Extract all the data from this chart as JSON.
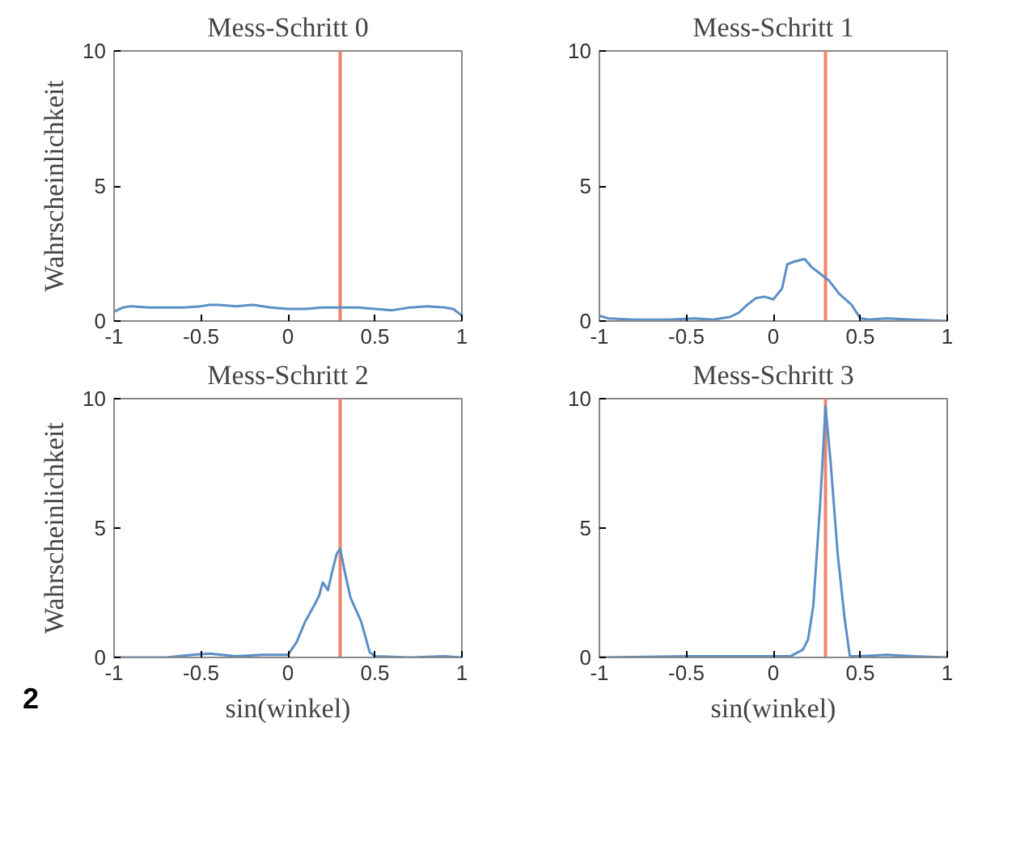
{
  "chart_data": [
    {
      "type": "line",
      "title": "Mess-Schritt 0",
      "ylabel": "Wahrscheinlichkeit",
      "xlim": [
        -1,
        1
      ],
      "ylim": [
        0,
        10
      ],
      "xticks": [
        -1,
        -0.5,
        0,
        0.5,
        1
      ],
      "yticks": [
        0,
        5,
        10
      ],
      "grid": false,
      "x": [
        -1,
        -0.95,
        -0.9,
        -0.8,
        -0.7,
        -0.6,
        -0.5,
        -0.45,
        -0.4,
        -0.3,
        -0.2,
        -0.1,
        0,
        0.1,
        0.2,
        0.3,
        0.4,
        0.5,
        0.6,
        0.7,
        0.8,
        0.9,
        0.95,
        1
      ],
      "series": [
        {
          "color": "#5b8fc7",
          "values": [
            0.35,
            0.5,
            0.55,
            0.5,
            0.5,
            0.5,
            0.55,
            0.6,
            0.6,
            0.55,
            0.6,
            0.5,
            0.45,
            0.45,
            0.5,
            0.5,
            0.5,
            0.45,
            0.4,
            0.5,
            0.55,
            0.5,
            0.45,
            0.2
          ]
        }
      ],
      "ref_lines": [
        {
          "axis": "x",
          "value": 0.3,
          "color": "#f0836b"
        }
      ]
    },
    {
      "type": "line",
      "title": "Mess-Schritt 1",
      "xlim": [
        -1,
        1
      ],
      "ylim": [
        0,
        10
      ],
      "xticks": [
        -1,
        -0.5,
        0,
        0.5,
        1
      ],
      "yticks": [
        0,
        5,
        10
      ],
      "grid": false,
      "x": [
        -1,
        -0.95,
        -0.8,
        -0.6,
        -0.45,
        -0.35,
        -0.25,
        -0.2,
        -0.15,
        -0.1,
        -0.05,
        0,
        0.05,
        0.08,
        0.12,
        0.18,
        0.22,
        0.28,
        0.32,
        0.38,
        0.45,
        0.5,
        0.55,
        0.65,
        0.8,
        1
      ],
      "series": [
        {
          "color": "#5b8fc7",
          "values": [
            0.2,
            0.1,
            0.05,
            0.05,
            0.1,
            0.05,
            0.15,
            0.3,
            0.6,
            0.85,
            0.9,
            0.8,
            1.2,
            2.1,
            2.2,
            2.3,
            2.0,
            1.7,
            1.5,
            1.0,
            0.6,
            0.1,
            0.05,
            0.1,
            0.05,
            0
          ]
        }
      ],
      "ref_lines": [
        {
          "axis": "x",
          "value": 0.3,
          "color": "#f0836b"
        }
      ]
    },
    {
      "type": "line",
      "title": "Mess-Schritt 2",
      "ylabel": "Wahrscheinlichkeit",
      "xlabel": "sin(winkel)",
      "xlim": [
        -1,
        1
      ],
      "ylim": [
        0,
        10
      ],
      "xticks": [
        -1,
        -0.5,
        0,
        0.5,
        1
      ],
      "yticks": [
        0,
        5,
        10
      ],
      "grid": false,
      "x": [
        -1,
        -0.7,
        -0.55,
        -0.45,
        -0.3,
        -0.15,
        0,
        0.05,
        0.1,
        0.15,
        0.18,
        0.2,
        0.23,
        0.25,
        0.28,
        0.3,
        0.33,
        0.36,
        0.42,
        0.47,
        0.5,
        0.7,
        0.9,
        1
      ],
      "series": [
        {
          "color": "#5b8fc7",
          "values": [
            0,
            0,
            0.1,
            0.15,
            0.05,
            0.1,
            0.1,
            0.6,
            1.4,
            2.0,
            2.4,
            2.9,
            2.6,
            3.2,
            4.0,
            4.2,
            3.2,
            2.3,
            1.4,
            0.2,
            0.05,
            0,
            0.05,
            0
          ]
        }
      ],
      "ref_lines": [
        {
          "axis": "x",
          "value": 0.3,
          "color": "#f0836b"
        }
      ],
      "annotations": [
        "2"
      ]
    },
    {
      "type": "line",
      "title": "Mess-Schritt 3",
      "xlabel": "sin(winkel)",
      "xlim": [
        -1,
        1
      ],
      "ylim": [
        0,
        10
      ],
      "xticks": [
        -1,
        -0.5,
        0,
        0.5,
        1
      ],
      "yticks": [
        0,
        5,
        10
      ],
      "grid": false,
      "x": [
        -1,
        -0.5,
        -0.25,
        0,
        0.1,
        0.17,
        0.2,
        0.23,
        0.27,
        0.3,
        0.33,
        0.37,
        0.41,
        0.44,
        0.5,
        0.65,
        0.8,
        1
      ],
      "series": [
        {
          "color": "#5b8fc7",
          "values": [
            0,
            0.05,
            0.05,
            0.05,
            0.05,
            0.3,
            0.7,
            2.0,
            6.0,
            9.7,
            7.5,
            4.0,
            1.5,
            0.05,
            0.05,
            0.1,
            0.05,
            0
          ]
        }
      ],
      "ref_lines": [
        {
          "axis": "x",
          "value": 0.3,
          "color": "#f0836b"
        }
      ]
    }
  ]
}
